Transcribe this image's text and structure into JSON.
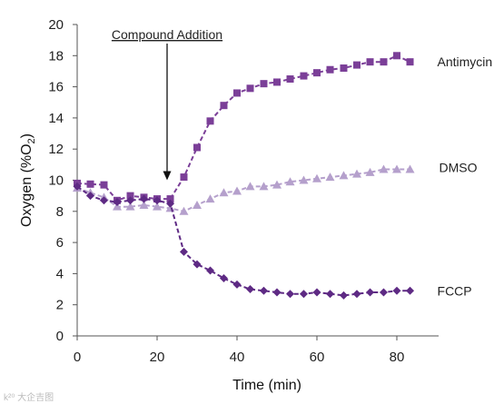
{
  "chart_data": {
    "type": "line",
    "title": "",
    "xlabel": "Time (min)",
    "ylabel": "Oxygen (%O",
    "ylabel_sub": "2",
    "ylabel_end": ")",
    "xlim": [
      0,
      90
    ],
    "ylim": [
      0,
      20
    ],
    "xticks": [
      0,
      20,
      40,
      60,
      80
    ],
    "yticks": [
      0,
      2,
      4,
      6,
      8,
      10,
      12,
      14,
      16,
      18,
      20
    ],
    "grid": false,
    "legend": "inline labels at right end of each series",
    "annotation": {
      "text": "Compound Addition",
      "x": 22.5,
      "arrow_to_y": 10.0
    },
    "series": [
      {
        "name": "Antimycin",
        "color": "#7B3F98",
        "marker": "square",
        "x": [
          0,
          3.3,
          6.7,
          10,
          13.3,
          16.7,
          20,
          23.3,
          26.7,
          30,
          33.3,
          36.7,
          40,
          43.3,
          46.7,
          50,
          53.3,
          56.7,
          60,
          63.3,
          66.7,
          70,
          73.3,
          76.7,
          80,
          83.3
        ],
        "y": [
          9.8,
          9.75,
          9.7,
          8.7,
          9.0,
          8.9,
          8.8,
          8.8,
          10.2,
          12.1,
          13.8,
          14.8,
          15.6,
          15.9,
          16.2,
          16.3,
          16.5,
          16.7,
          16.9,
          17.1,
          17.2,
          17.4,
          17.6,
          17.6,
          18.0,
          17.6
        ]
      },
      {
        "name": "DMSO",
        "color": "#B5A0CC",
        "marker": "triangle",
        "x": [
          0,
          3.3,
          6.7,
          10,
          13.3,
          16.7,
          20,
          23.3,
          26.7,
          30,
          33.3,
          36.7,
          40,
          43.3,
          46.7,
          50,
          53.3,
          56.7,
          60,
          63.3,
          66.7,
          70,
          73.3,
          76.7,
          80,
          83.3
        ],
        "y": [
          9.5,
          9.2,
          8.9,
          8.3,
          8.3,
          8.4,
          8.3,
          8.2,
          8.0,
          8.4,
          8.8,
          9.2,
          9.3,
          9.6,
          9.6,
          9.7,
          9.9,
          10.0,
          10.1,
          10.2,
          10.3,
          10.4,
          10.5,
          10.7,
          10.7,
          10.7
        ]
      },
      {
        "name": "FCCP",
        "color": "#5E2A84",
        "marker": "diamond",
        "x": [
          0,
          3.3,
          6.7,
          10,
          13.3,
          16.7,
          20,
          23.3,
          26.7,
          30,
          33.3,
          36.7,
          40,
          43.3,
          46.7,
          50,
          53.3,
          56.7,
          60,
          63.3,
          66.7,
          70,
          73.3,
          76.7,
          80,
          83.3
        ],
        "y": [
          9.6,
          9.0,
          8.7,
          8.6,
          8.7,
          8.8,
          8.7,
          8.5,
          5.4,
          4.6,
          4.2,
          3.7,
          3.3,
          3.0,
          2.9,
          2.8,
          2.7,
          2.7,
          2.8,
          2.7,
          2.6,
          2.7,
          2.8,
          2.8,
          2.9,
          2.9
        ]
      }
    ]
  },
  "watermark": "k²⁰ 大企吉图"
}
